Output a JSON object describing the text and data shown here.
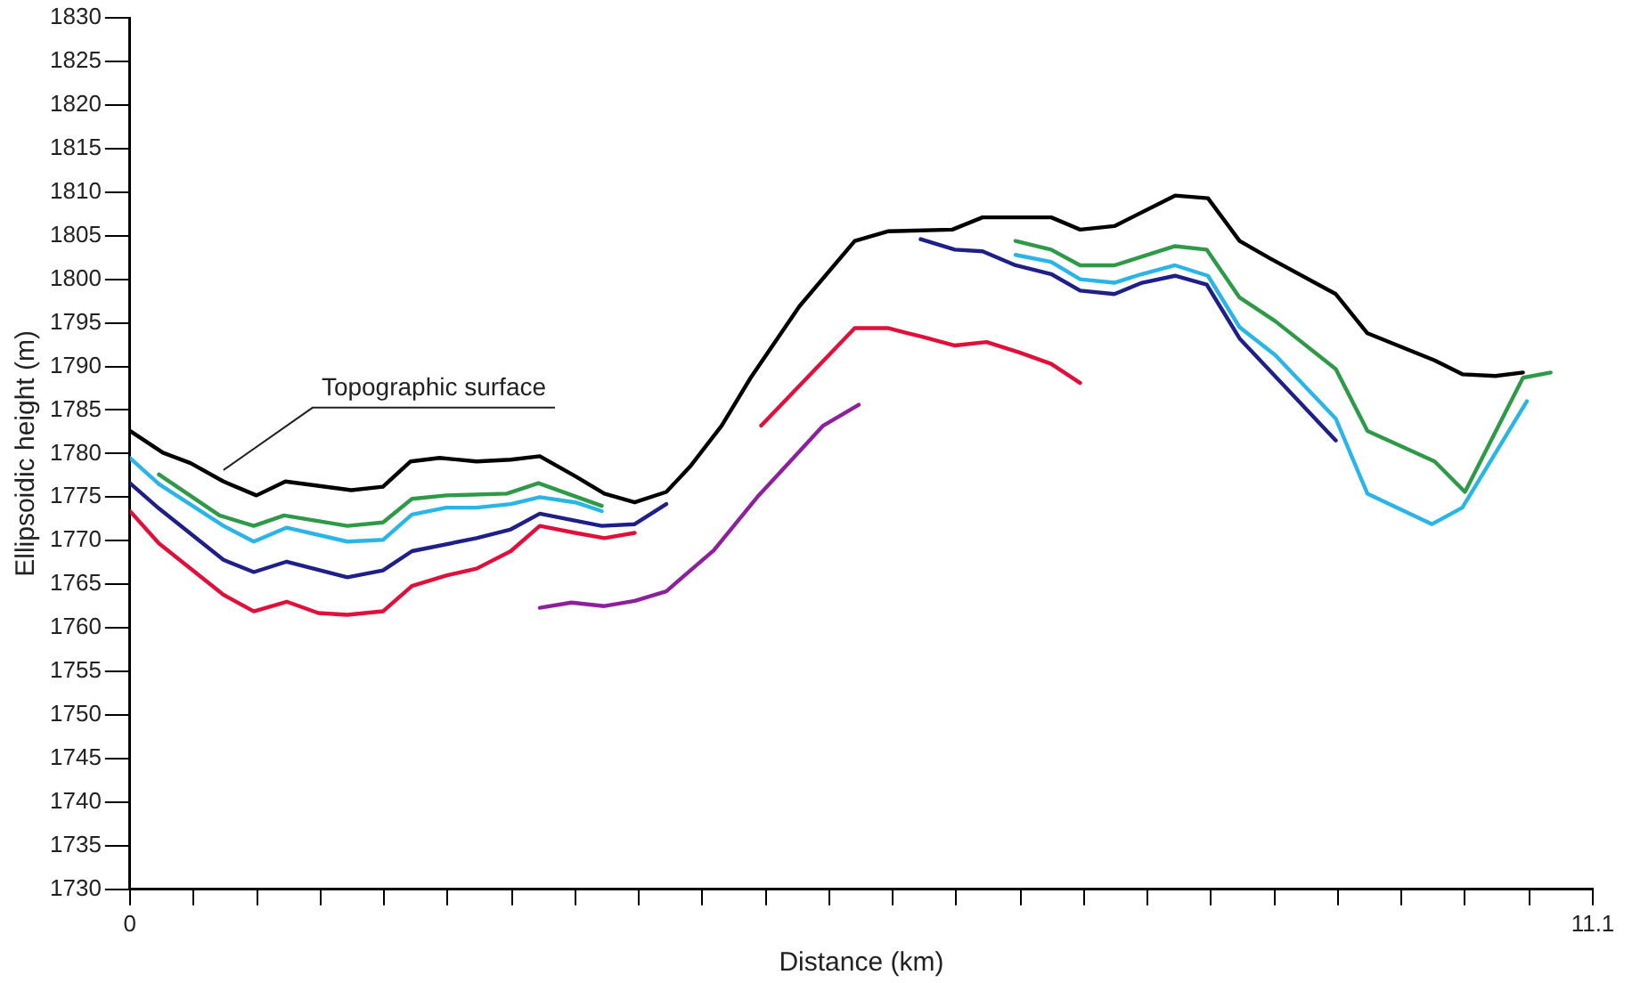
{
  "chart_data": {
    "type": "line",
    "xlabel": "Distance (km)",
    "ylabel": "Ellipsoidic height (m)",
    "xlim": [
      0,
      11.1
    ],
    "ylim": [
      1730,
      1830
    ],
    "xticks": [
      0,
      {
        "value": 0.48,
        "label": null
      },
      {
        "value": 0.97,
        "label": null
      },
      {
        "value": 1.45,
        "label": null
      },
      {
        "value": 1.93,
        "label": null
      },
      {
        "value": 2.41,
        "label": null
      },
      {
        "value": 2.9,
        "label": null
      },
      {
        "value": 3.38,
        "label": null
      },
      {
        "value": 3.86,
        "label": null
      },
      {
        "value": 4.34,
        "label": null
      },
      {
        "value": 4.83,
        "label": null
      },
      {
        "value": 5.31,
        "label": null
      },
      {
        "value": 5.79,
        "label": null
      },
      {
        "value": 6.27,
        "label": null
      },
      {
        "value": 6.76,
        "label": null
      },
      {
        "value": 7.24,
        "label": null
      },
      {
        "value": 7.72,
        "label": null
      },
      {
        "value": 8.2,
        "label": null
      },
      {
        "value": 8.69,
        "label": null
      },
      {
        "value": 9.17,
        "label": null
      },
      {
        "value": 9.65,
        "label": null
      },
      {
        "value": 10.13,
        "label": null
      },
      {
        "value": 10.62,
        "label": null
      },
      11.1
    ],
    "yticks": [
      1730,
      1735,
      1740,
      1745,
      1750,
      1755,
      1760,
      1765,
      1770,
      1775,
      1780,
      1785,
      1790,
      1795,
      1800,
      1805,
      1810,
      1815,
      1820,
      1825,
      1830
    ],
    "grid": false,
    "legend": false,
    "marker": "none",
    "line_style": "solid",
    "annotations": [
      {
        "text": "Topographic surface",
        "x": 0.71,
        "y": 1777.5
      }
    ],
    "series": [
      {
        "color": "#000000",
        "x": [
          0,
          0.25,
          0.46,
          0.71,
          0.96,
          1.18,
          1.68,
          1.92,
          2.13,
          2.35,
          2.63,
          2.89,
          3.11,
          3.38,
          3.6,
          3.83,
          4.07,
          4.25,
          4.49,
          4.71,
          5.08,
          5.5,
          5.75,
          6.24,
          6.47,
          6.99,
          7.21,
          7.47,
          7.93,
          8.18,
          8.42,
          8.65,
          9.15,
          9.39,
          9.9,
          10.11,
          10.36,
          10.57
        ],
        "values": [
          1782.6,
          1780.1,
          1778.9,
          1776.8,
          1775.2,
          1776.8,
          1775.8,
          1776.2,
          1779.1,
          1779.5,
          1779.1,
          1779.3,
          1779.7,
          1777.4,
          1775.4,
          1774.4,
          1775.6,
          1778.5,
          1783.2,
          1788.7,
          1796.9,
          1804.4,
          1805.5,
          1805.7,
          1807.1,
          1807.1,
          1805.7,
          1806.1,
          1809.6,
          1809.3,
          1804.4,
          1802.4,
          1798.3,
          1793.8,
          1790.7,
          1789.1,
          1788.9,
          1789.3
        ]
      },
      {
        "color": "#2e9a47",
        "x": [
          0.22,
          0.68,
          0.94,
          1.17,
          1.65,
          1.92,
          2.14,
          2.4,
          2.86,
          3.1,
          3.32,
          3.58,
          5.0,
          6.72,
          6.99,
          7.21,
          7.47,
          7.68,
          7.93,
          8.17,
          8.42,
          8.69,
          9.15,
          9.39,
          9.9,
          10.13,
          10.57,
          10.78
        ],
        "values": [
          1777.6,
          1772.9,
          1771.7,
          1772.9,
          1771.7,
          1772.1,
          1774.8,
          1775.2,
          1775.4,
          1776.6,
          1775.4,
          1774.0,
          null,
          1804.4,
          1803.4,
          1801.6,
          1801.6,
          1802.6,
          1803.8,
          1803.4,
          1797.9,
          1795.2,
          1789.7,
          1782.6,
          1779.1,
          1775.6,
          1788.7,
          1789.3
        ]
      },
      {
        "color": "#29b5e8",
        "x": [
          0,
          0.22,
          0.71,
          0.94,
          1.19,
          1.65,
          1.92,
          2.14,
          2.4,
          2.63,
          2.89,
          3.11,
          3.38,
          3.58,
          5.0,
          6.72,
          6.99,
          7.21,
          7.47,
          7.68,
          7.93,
          8.18,
          8.42,
          8.69,
          9.15,
          9.39,
          9.88,
          10.11,
          10.6
        ],
        "values": [
          1779.5,
          1776.5,
          1771.7,
          1769.9,
          1771.5,
          1769.9,
          1770.1,
          1773.0,
          1773.8,
          1773.8,
          1774.2,
          1775.0,
          1774.4,
          1773.4,
          null,
          1802.8,
          1802.0,
          1800.0,
          1799.6,
          1800.6,
          1801.6,
          1800.4,
          1794.5,
          1791.3,
          1784.0,
          1775.4,
          1771.9,
          1773.8,
          1786.0
        ]
      },
      {
        "color": "#1f1f8a",
        "x": [
          0,
          0.22,
          0.71,
          0.94,
          1.19,
          1.65,
          1.92,
          2.14,
          2.63,
          2.89,
          3.11,
          3.58,
          3.83,
          4.07,
          5.0,
          6.0,
          6.26,
          6.47,
          6.72,
          6.99,
          7.21,
          7.47,
          7.68,
          7.93,
          8.17,
          8.42,
          9.15
        ],
        "values": [
          1776.6,
          1773.7,
          1767.8,
          1766.4,
          1767.6,
          1765.8,
          1766.6,
          1768.8,
          1770.3,
          1771.3,
          1773.1,
          1771.7,
          1771.9,
          1774.2,
          null,
          1804.6,
          1803.4,
          1803.2,
          1801.6,
          1800.6,
          1798.7,
          1798.3,
          1799.6,
          1800.4,
          1799.4,
          1793.2,
          1781.5
        ]
      },
      {
        "color": "#e0103a",
        "x": [
          0,
          0.22,
          0.71,
          0.94,
          1.19,
          1.43,
          1.65,
          1.92,
          2.14,
          2.4,
          2.63,
          2.89,
          3.11,
          3.38,
          3.6,
          3.83,
          4.3,
          4.79,
          5.5,
          5.75,
          6.01,
          6.26,
          6.5,
          6.75,
          6.99,
          7.21
        ],
        "values": [
          1773.4,
          1769.7,
          1763.8,
          1761.9,
          1763.0,
          1761.7,
          1761.5,
          1761.9,
          1764.8,
          1766.0,
          1766.8,
          1768.8,
          1771.7,
          1770.9,
          1770.3,
          1770.9,
          null,
          1783.2,
          1794.4,
          1794.4,
          1793.4,
          1792.4,
          1792.8,
          1791.6,
          1790.3,
          1788.1
        ]
      },
      {
        "color": "#8e1f9e",
        "x": [
          3.11,
          3.35,
          3.6,
          3.83,
          4.07,
          4.43,
          4.76,
          5.26,
          5.53
        ],
        "values": [
          1762.3,
          1762.9,
          1762.5,
          1763.1,
          1764.2,
          1768.9,
          1775.0,
          1783.2,
          1785.6
        ]
      }
    ]
  }
}
